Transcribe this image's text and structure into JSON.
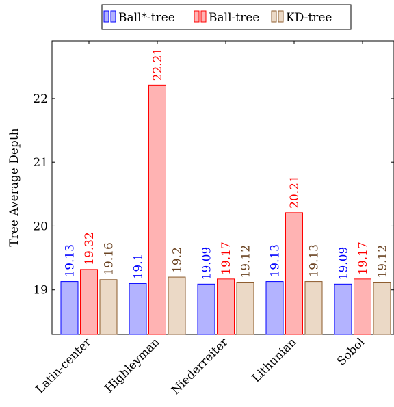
{
  "chart_data": {
    "type": "bar",
    "title": "",
    "xlabel": "",
    "ylabel": "Tree Average Depth",
    "ylim": [
      18.3,
      22.9
    ],
    "yticks": [
      19,
      20,
      21,
      22
    ],
    "categories": [
      "Latin-center",
      "Highleyman",
      "Niederreiter",
      "Lithunian",
      "Sobol"
    ],
    "legend_position": "top-center",
    "grid": false,
    "series": [
      {
        "name": "Ball*-tree",
        "values": [
          19.13,
          19.1,
          19.09,
          19.13,
          19.09
        ],
        "labels": [
          "19.13",
          "19.1",
          "19.09",
          "19.13",
          "19.09"
        ],
        "fill": "#b3b3ff",
        "stroke": "#0000ff",
        "label_color": "#0000ff"
      },
      {
        "name": "Ball-tree",
        "values": [
          19.32,
          22.21,
          19.17,
          20.21,
          19.17
        ],
        "labels": [
          "19.32",
          "22.21",
          "19.17",
          "20.21",
          "19.17"
        ],
        "fill": "#ffb3b3",
        "stroke": "#ff0000",
        "label_color": "#ff0000"
      },
      {
        "name": "KD-tree",
        "values": [
          19.16,
          19.2,
          19.12,
          19.13,
          19.12
        ],
        "labels": [
          "19.16",
          "19.2",
          "19.12",
          "19.13",
          "19.12"
        ],
        "fill": "#ebd9c6",
        "stroke": "#8b5a2b",
        "label_color": "#6b4423"
      }
    ]
  }
}
